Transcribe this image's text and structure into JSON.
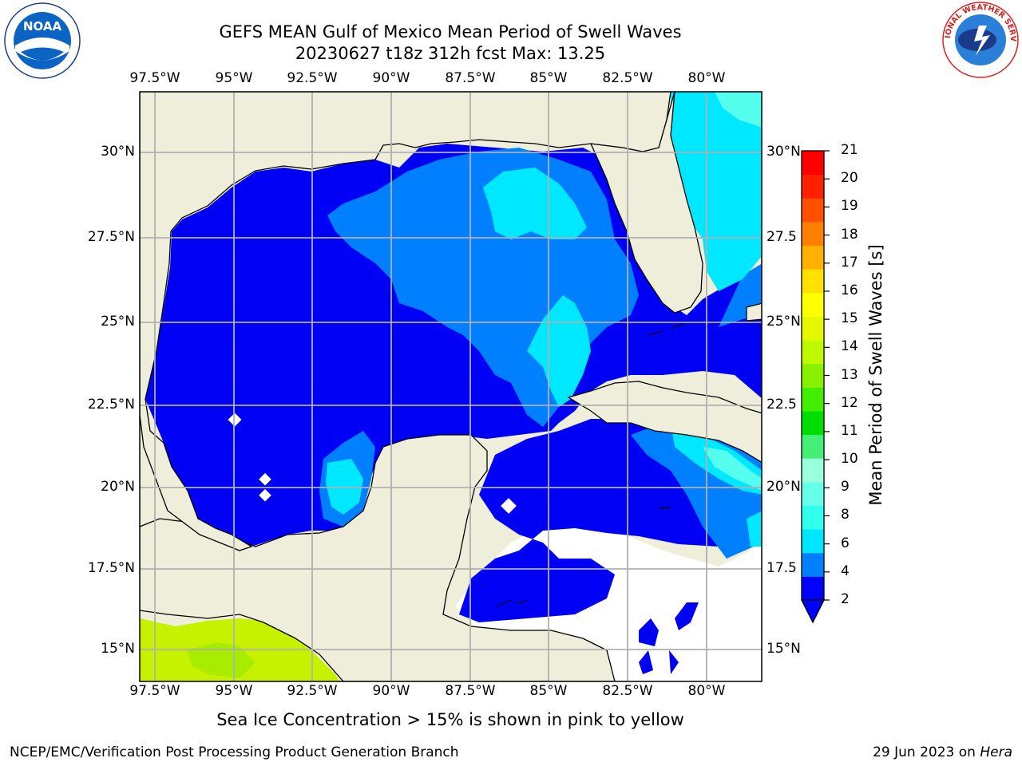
{
  "header": {
    "title_line1": "GEFS MEAN Gulf of Mexico Mean Period of Swell Waves",
    "title_line2": "20230627 t18z 312h fcst   Max: 13.25"
  },
  "logos": {
    "left": "NOAA",
    "right": "NATIONAL WEATHER SERVICE"
  },
  "map": {
    "lon_labels": [
      "97.5°W",
      "95°W",
      "92.5°W",
      "90°W",
      "87.5°W",
      "85°W",
      "82.5°W",
      "80°W"
    ],
    "lat_labels_left": [
      "30°N",
      "27.5°N",
      "25°N",
      "22.5°N",
      "20°N",
      "17.5°N",
      "15°N"
    ],
    "lat_labels_right": [
      "30°N",
      "27.5",
      "25°N",
      "22.5",
      "20°N",
      "17.5",
      "15°N"
    ],
    "land_color": "#efeedb",
    "grid_color": "#b0b0b0"
  },
  "colorbar": {
    "title": "Mean Period of Swell Waves [s]",
    "labels": [
      "21",
      "20",
      "19",
      "18",
      "17",
      "16",
      "15",
      "14",
      "13",
      "12",
      "11",
      "10",
      "9",
      "8",
      "6",
      "4",
      "2"
    ],
    "colors": [
      "#0000ff",
      "#0080ff",
      "#00e6ff",
      "#33ffee",
      "#66ffe8",
      "#99ffdd",
      "#44ee77",
      "#00dd00",
      "#44ee00",
      "#88f000",
      "#c0f800",
      "#e6f800",
      "#ffff00",
      "#ffe000",
      "#ffb000",
      "#ff8000",
      "#ff5000",
      "#ff2000",
      "#ff0000"
    ]
  },
  "notes": {
    "sea_ice": "Sea Ice Concentration > 15% is shown in pink to yellow"
  },
  "footer": {
    "left": "NCEP/EMC/Verification Post Processing Product Generation Branch",
    "date": "29 Jun 2023 on ",
    "machine": "Hera"
  }
}
